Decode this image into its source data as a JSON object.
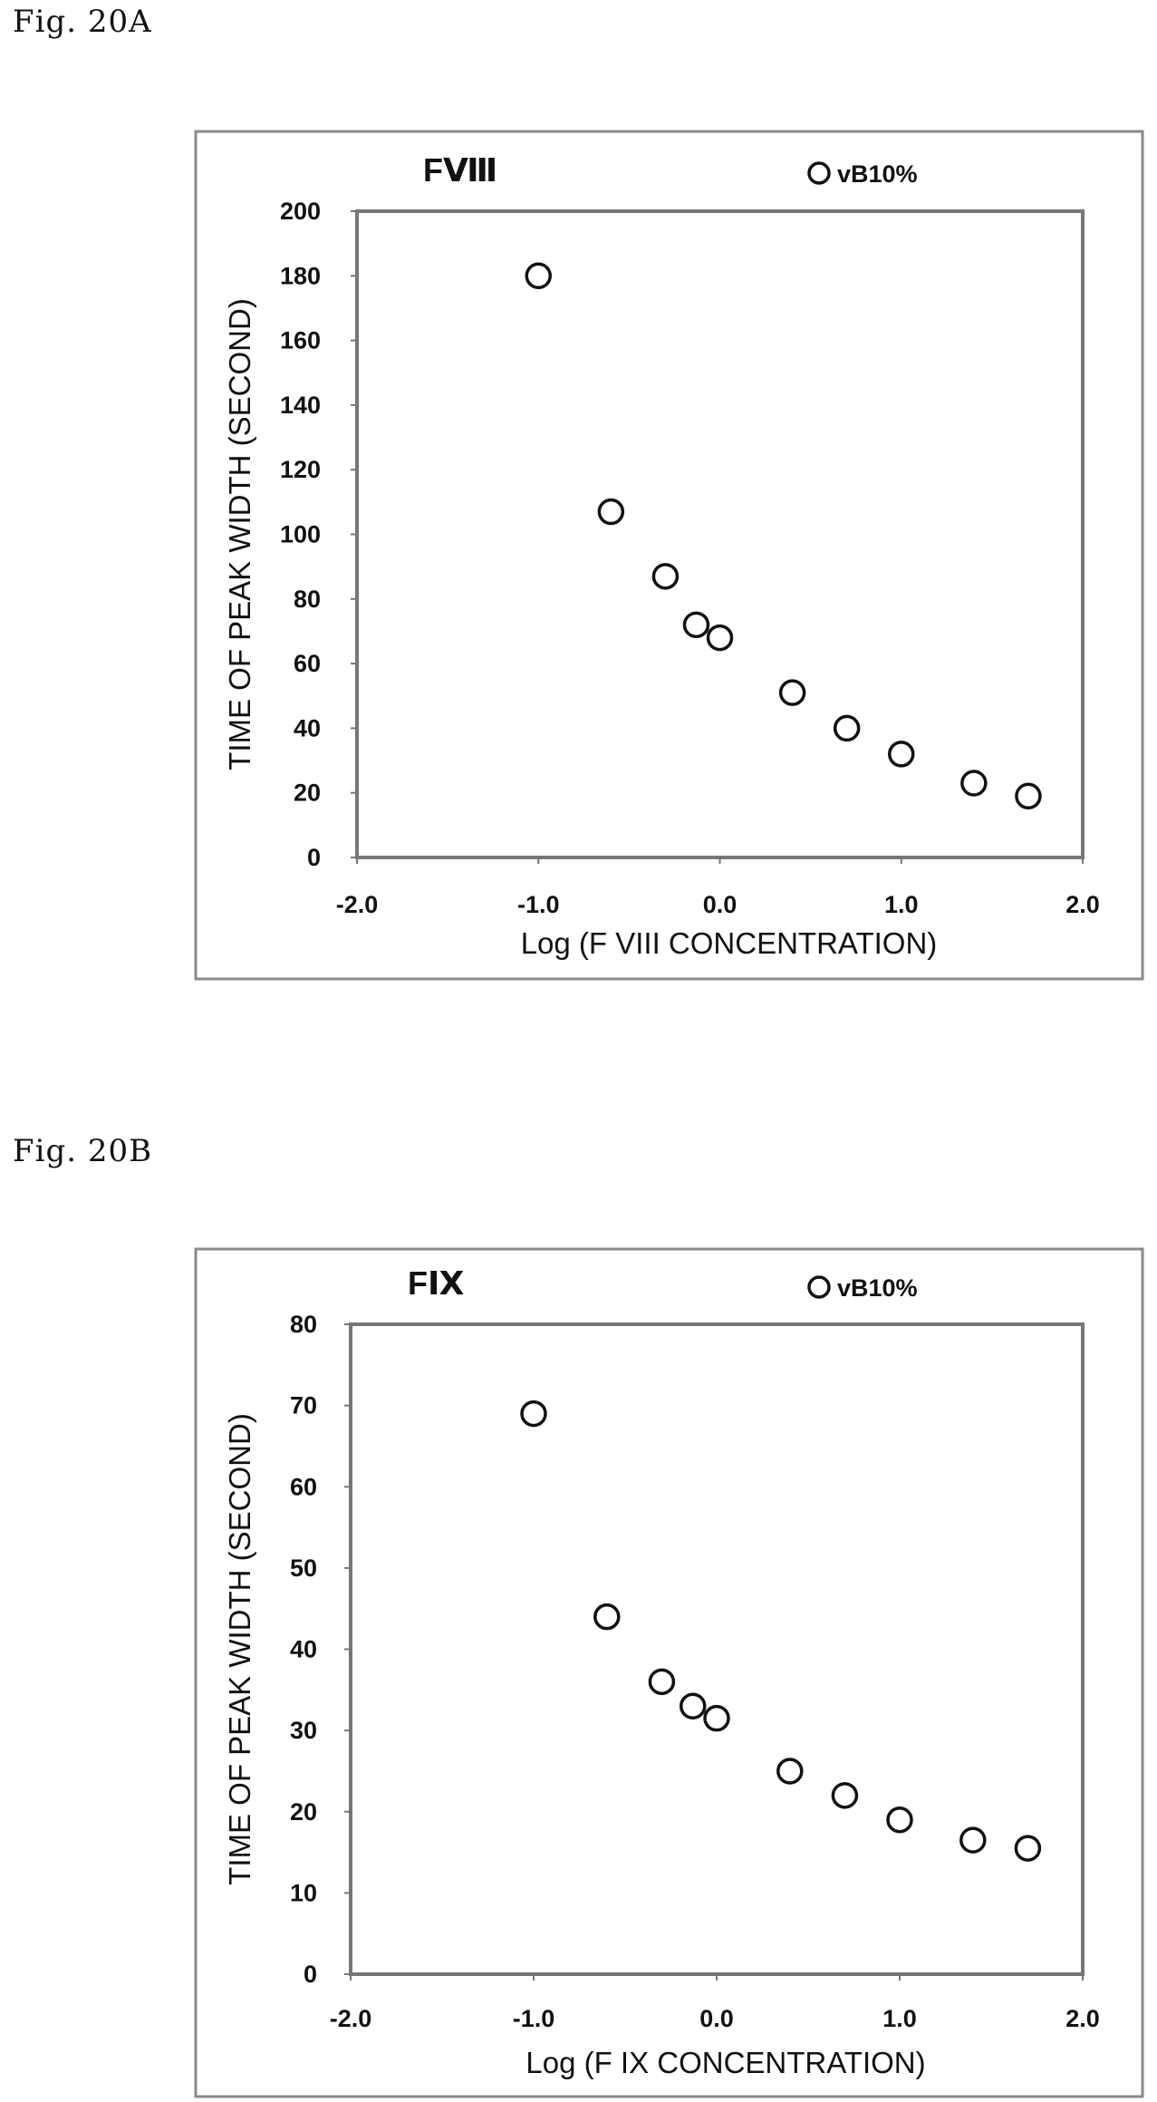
{
  "figures": [
    {
      "label": "Fig. 20A"
    },
    {
      "label": "Fig. 20B"
    }
  ],
  "chart_data": [
    {
      "type": "scatter",
      "title": "FⅧ",
      "xlabel": "Log (F VIII CONCENTRATION)",
      "ylabel": "TIME OF PEAK WIDTH (SECOND)",
      "xlim": [
        -2.0,
        2.0
      ],
      "ylim": [
        0,
        200
      ],
      "xticks": [
        "-2.0",
        "-1.0",
        "0.0",
        "1.0",
        "2.0"
      ],
      "yticks": [
        "0",
        "20",
        "40",
        "60",
        "80",
        "100",
        "120",
        "140",
        "160",
        "180",
        "200"
      ],
      "grid": false,
      "legend_position": "top-right",
      "series": [
        {
          "name": "vB10%",
          "marker": "open-circle",
          "x": [
            -1.0,
            -0.6,
            -0.3,
            -0.13,
            0.0,
            0.4,
            0.7,
            1.0,
            1.4,
            1.7
          ],
          "y": [
            180,
            107,
            87,
            72,
            68,
            51,
            40,
            32,
            23,
            19
          ]
        }
      ]
    },
    {
      "type": "scatter",
      "title": "FⅨ",
      "xlabel": "Log (F IX CONCENTRATION)",
      "ylabel": "TIME OF PEAK WIDTH (SECOND)",
      "xlim": [
        -2.0,
        2.0
      ],
      "ylim": [
        0,
        80
      ],
      "xticks": [
        "-2.0",
        "-1.0",
        "0.0",
        "1.0",
        "2.0"
      ],
      "yticks": [
        "0",
        "10",
        "20",
        "30",
        "40",
        "50",
        "60",
        "70",
        "80"
      ],
      "grid": false,
      "legend_position": "top-right",
      "series": [
        {
          "name": "vB10%",
          "marker": "open-circle",
          "x": [
            -1.0,
            -0.6,
            -0.3,
            -0.13,
            0.0,
            0.4,
            0.7,
            1.0,
            1.4,
            1.7
          ],
          "y": [
            69,
            44,
            36,
            33,
            31.5,
            25,
            22,
            19,
            16.5,
            15.5
          ]
        }
      ]
    }
  ]
}
